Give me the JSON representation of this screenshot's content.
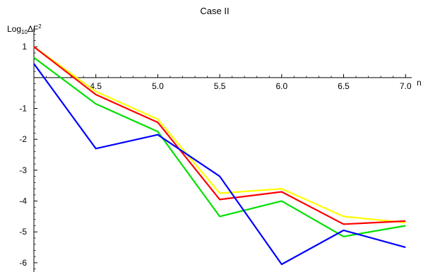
{
  "chart_data": {
    "type": "line",
    "title": "Case II",
    "xlabel": "n",
    "ylabel_main": "Log",
    "ylabel_sub": "10",
    "ylabel_rest": "ΔF",
    "ylabel_sup": "2",
    "xlim": [
      4.0,
      7.05
    ],
    "ylim": [
      -6.3,
      1.6
    ],
    "x_ticks": [
      4.5,
      5.0,
      5.5,
      6.0,
      6.5,
      7.0
    ],
    "x_tick_labels": [
      "4.5",
      "5.0",
      "5.5",
      "6.0",
      "6.5",
      "7.0"
    ],
    "y_ticks": [
      1,
      -1,
      -2,
      -3,
      -4,
      -5,
      -6
    ],
    "y_tick_labels": [
      "1",
      "-1",
      "-2",
      "-3",
      "-4",
      "-5",
      "-6"
    ],
    "grid": false,
    "x": [
      4.0,
      4.5,
      5.0,
      5.5,
      6.0,
      6.5,
      7.0
    ],
    "series": [
      {
        "color": "#ffff00",
        "values": [
          1.0,
          -0.45,
          -1.35,
          -3.75,
          -3.6,
          -4.5,
          -4.7
        ]
      },
      {
        "color": "#ff0000",
        "values": [
          1.0,
          -0.55,
          -1.45,
          -3.95,
          -3.7,
          -4.75,
          -4.65
        ]
      },
      {
        "color": "#00e000",
        "values": [
          0.65,
          -0.85,
          -1.75,
          -4.5,
          -4.0,
          -5.15,
          -4.8
        ]
      },
      {
        "color": "#0000ff",
        "values": [
          0.45,
          -2.3,
          -1.85,
          -3.2,
          -6.05,
          -4.95,
          -5.5
        ]
      }
    ]
  }
}
